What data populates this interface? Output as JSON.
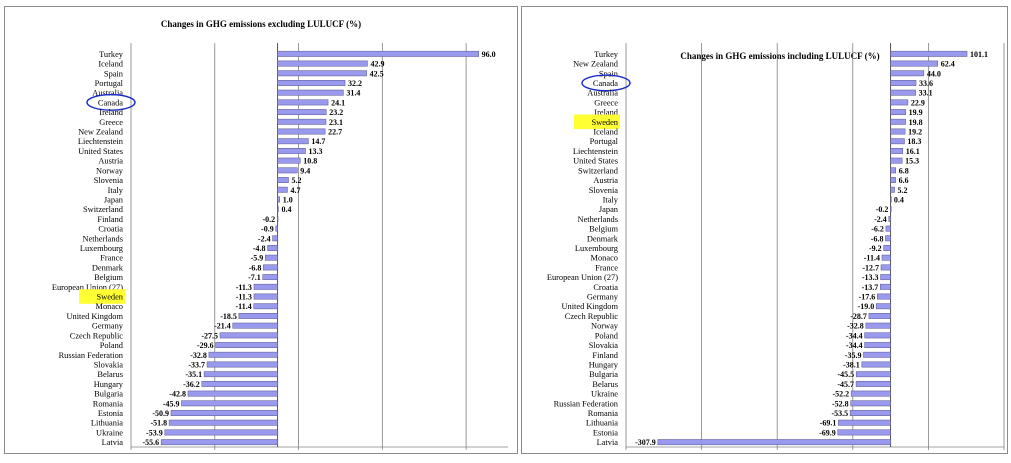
{
  "chart_data": [
    {
      "type": "bar",
      "orientation": "horizontal",
      "title": "Changes in GHG emissions excluding LULUCF (%)",
      "xlim": [
        -70,
        110
      ],
      "xticks": [
        -70,
        -30,
        10,
        50,
        90
      ],
      "grid": true,
      "bar_color": "#9999ee",
      "highlighted": {
        "Sweden": "highlight-yellow",
        "Canada": "circled-blue"
      },
      "categories": [
        "Turkey",
        "Iceland",
        "Spain",
        "Portugal",
        "Australia",
        "Canada",
        "Ireland",
        "Greece",
        "New Zealand",
        "Liechtenstein",
        "United States",
        "Austria",
        "Norway",
        "Slovenia",
        "Italy",
        "Japan",
        "Switzerland",
        "Finland",
        "Croatia",
        "Netherlands",
        "Luxembourg",
        "France",
        "Denmark",
        "Belgium",
        "European Union (27)",
        "Sweden",
        "Monaco",
        "United Kingdom",
        "Germany",
        "Czech Republic",
        "Poland",
        "Russian Federation",
        "Slovakia",
        "Belarus",
        "Hungary",
        "Bulgaria",
        "Romania",
        "Estonia",
        "Lithuania",
        "Ukraine",
        "Latvia"
      ],
      "values": [
        96.0,
        42.9,
        42.5,
        32.2,
        31.4,
        24.1,
        23.2,
        23.1,
        22.7,
        14.7,
        13.3,
        10.8,
        9.4,
        5.2,
        4.7,
        1.0,
        0.4,
        -0.2,
        -0.9,
        -2.4,
        -4.8,
        -5.9,
        -6.8,
        -7.1,
        -11.3,
        -11.3,
        -11.4,
        -18.5,
        -21.4,
        -27.5,
        -29.6,
        -32.8,
        -33.7,
        -35.1,
        -36.2,
        -42.8,
        -45.9,
        -50.9,
        -51.8,
        -53.9,
        -55.6
      ],
      "labels": [
        "96.0",
        "42.9",
        "42.5",
        "32.2",
        "31.4",
        "24.1",
        "23.2",
        "23.1",
        "22.7",
        "14.7",
        "13.3",
        "10.8",
        "9.4",
        "5.2",
        "4.7",
        "1.0",
        "0.4",
        "-0.2",
        "-0.9",
        "-2.4",
        "-4.8",
        "-5.9",
        "-6.8",
        "-7.1",
        "-11.3",
        "-11.3",
        "-11.4",
        "-18.5",
        "-21.4",
        "-27.5",
        "-29.6",
        "-32.8",
        "-33.7",
        "-35.1",
        "-36.2",
        "-42.8",
        "-45.9",
        "-50.9",
        "-51.8",
        "-53.9",
        "-55.6"
      ]
    },
    {
      "type": "bar",
      "orientation": "horizontal",
      "title": "Changes in GHG emissions including LULUCF (%)",
      "xlim": [
        -350,
        150
      ],
      "xticks": [
        -350,
        -250,
        -150,
        -50,
        50,
        150
      ],
      "grid": true,
      "bar_color": "#9999ee",
      "highlighted": {
        "Sweden": "highlight-yellow",
        "Canada": "circled-blue"
      },
      "categories": [
        "Turkey",
        "New Zealand",
        "Spain",
        "Canada",
        "Australia",
        "Greece",
        "Ireland",
        "Sweden",
        "Iceland",
        "Portugal",
        "Liechtenstein",
        "United States",
        "Switzerland",
        "Austria",
        "Slovenia",
        "Italy",
        "Japan",
        "Netherlands",
        "Belgium",
        "Denmark",
        "Luxembourg",
        "Monaco",
        "France",
        "European Union (27)",
        "Croatia",
        "Germany",
        "United Kingdom",
        "Czech Republic",
        "Norway",
        "Poland",
        "Slovakia",
        "Finland",
        "Hungary",
        "Bulgaria",
        "Belarus",
        "Ukraine",
        "Russian Federation",
        "Romania",
        "Lithuania",
        "Estonia",
        "Latvia"
      ],
      "values": [
        101.1,
        62.4,
        44.0,
        33.6,
        33.1,
        22.9,
        19.9,
        19.8,
        19.2,
        18.3,
        16.1,
        15.3,
        6.8,
        6.6,
        5.2,
        0.4,
        -0.2,
        -2.4,
        -6.2,
        -6.8,
        -9.2,
        -11.4,
        -12.7,
        -13.3,
        -13.7,
        -17.6,
        -19.0,
        -28.7,
        -32.8,
        -34.4,
        -34.4,
        -35.9,
        -38.1,
        -45.5,
        -45.7,
        -52.2,
        -52.8,
        -53.5,
        -69.1,
        -69.9,
        -307.9
      ],
      "labels": [
        "101.1",
        "62.4",
        "44.0",
        "33.6",
        "33.1",
        "22.9",
        "19.9",
        "19.8",
        "19.2",
        "18.3",
        "16.1",
        "15.3",
        "6.8",
        "6.6",
        "5.2",
        "0.4",
        "-0.2",
        "-2.4",
        "-6.2",
        "-6.8",
        "-9.2",
        "-11.4",
        "-12.7",
        "-13.3",
        "-13.7",
        "-17.6",
        "-19.0",
        "-28.7",
        "-32.8",
        "-34.4",
        "-34.4",
        "-35.9",
        "-38.1",
        "-45.5",
        "-45.7",
        "-52.2",
        "-52.8",
        "-53.5",
        "-69.1",
        "-69.9",
        "-307.9"
      ]
    }
  ]
}
